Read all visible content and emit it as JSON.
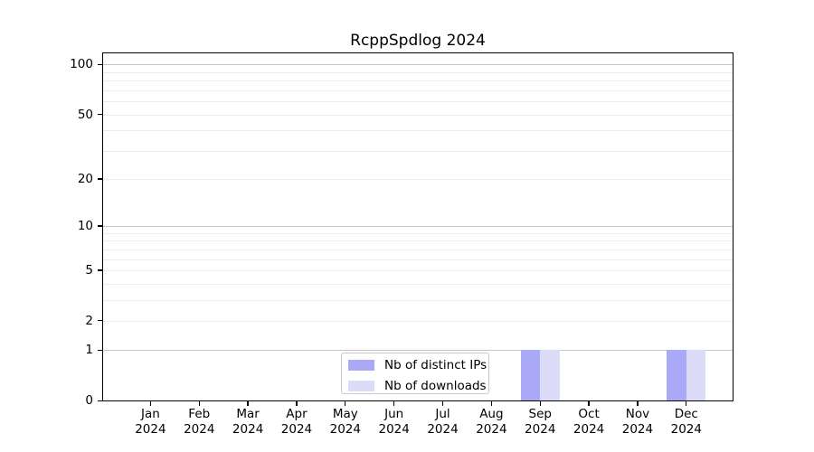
{
  "chart_data": {
    "type": "bar",
    "title": "RcppSpdlog 2024",
    "categories": [
      "Jan 2024",
      "Feb 2024",
      "Mar 2024",
      "Apr 2024",
      "May 2024",
      "Jun 2024",
      "Jul 2024",
      "Aug 2024",
      "Sep 2024",
      "Oct 2024",
      "Nov 2024",
      "Dec 2024"
    ],
    "series": [
      {
        "name": "Nb of distinct IPs",
        "color": "#a9a9f7",
        "values": [
          0,
          0,
          0,
          0,
          0,
          0,
          0,
          0,
          1,
          0,
          0,
          1
        ]
      },
      {
        "name": "Nb of downloads",
        "color": "#dcdcf8",
        "values": [
          0,
          0,
          0,
          0,
          0,
          0,
          0,
          0,
          1,
          0,
          0,
          1
        ]
      }
    ],
    "y_axis": {
      "scale": "log1p",
      "tick_values": [
        0,
        1,
        2,
        5,
        10,
        20,
        50,
        100
      ],
      "tick_labels": [
        "0",
        "1",
        "2",
        "5",
        "10",
        "20",
        "50",
        "100"
      ],
      "major_grid_values": [
        1,
        10,
        100
      ],
      "minor_grid_values": [
        2,
        3,
        4,
        5,
        6,
        7,
        8,
        9,
        20,
        30,
        40,
        50,
        60,
        70,
        80,
        90
      ],
      "range": [
        0,
        117
      ]
    },
    "x_axis": {
      "label_lines": 2
    },
    "legend": {
      "position": "lower center-left inside plot"
    },
    "grid": "horizontal only",
    "colors": {
      "major_grid": "#c6c6c6",
      "minor_grid": "#ececec",
      "axis": "#000000",
      "background": "#ffffff",
      "bar_distinct_ips": "#a9a9f7",
      "bar_downloads": "#dcdcf8"
    }
  }
}
